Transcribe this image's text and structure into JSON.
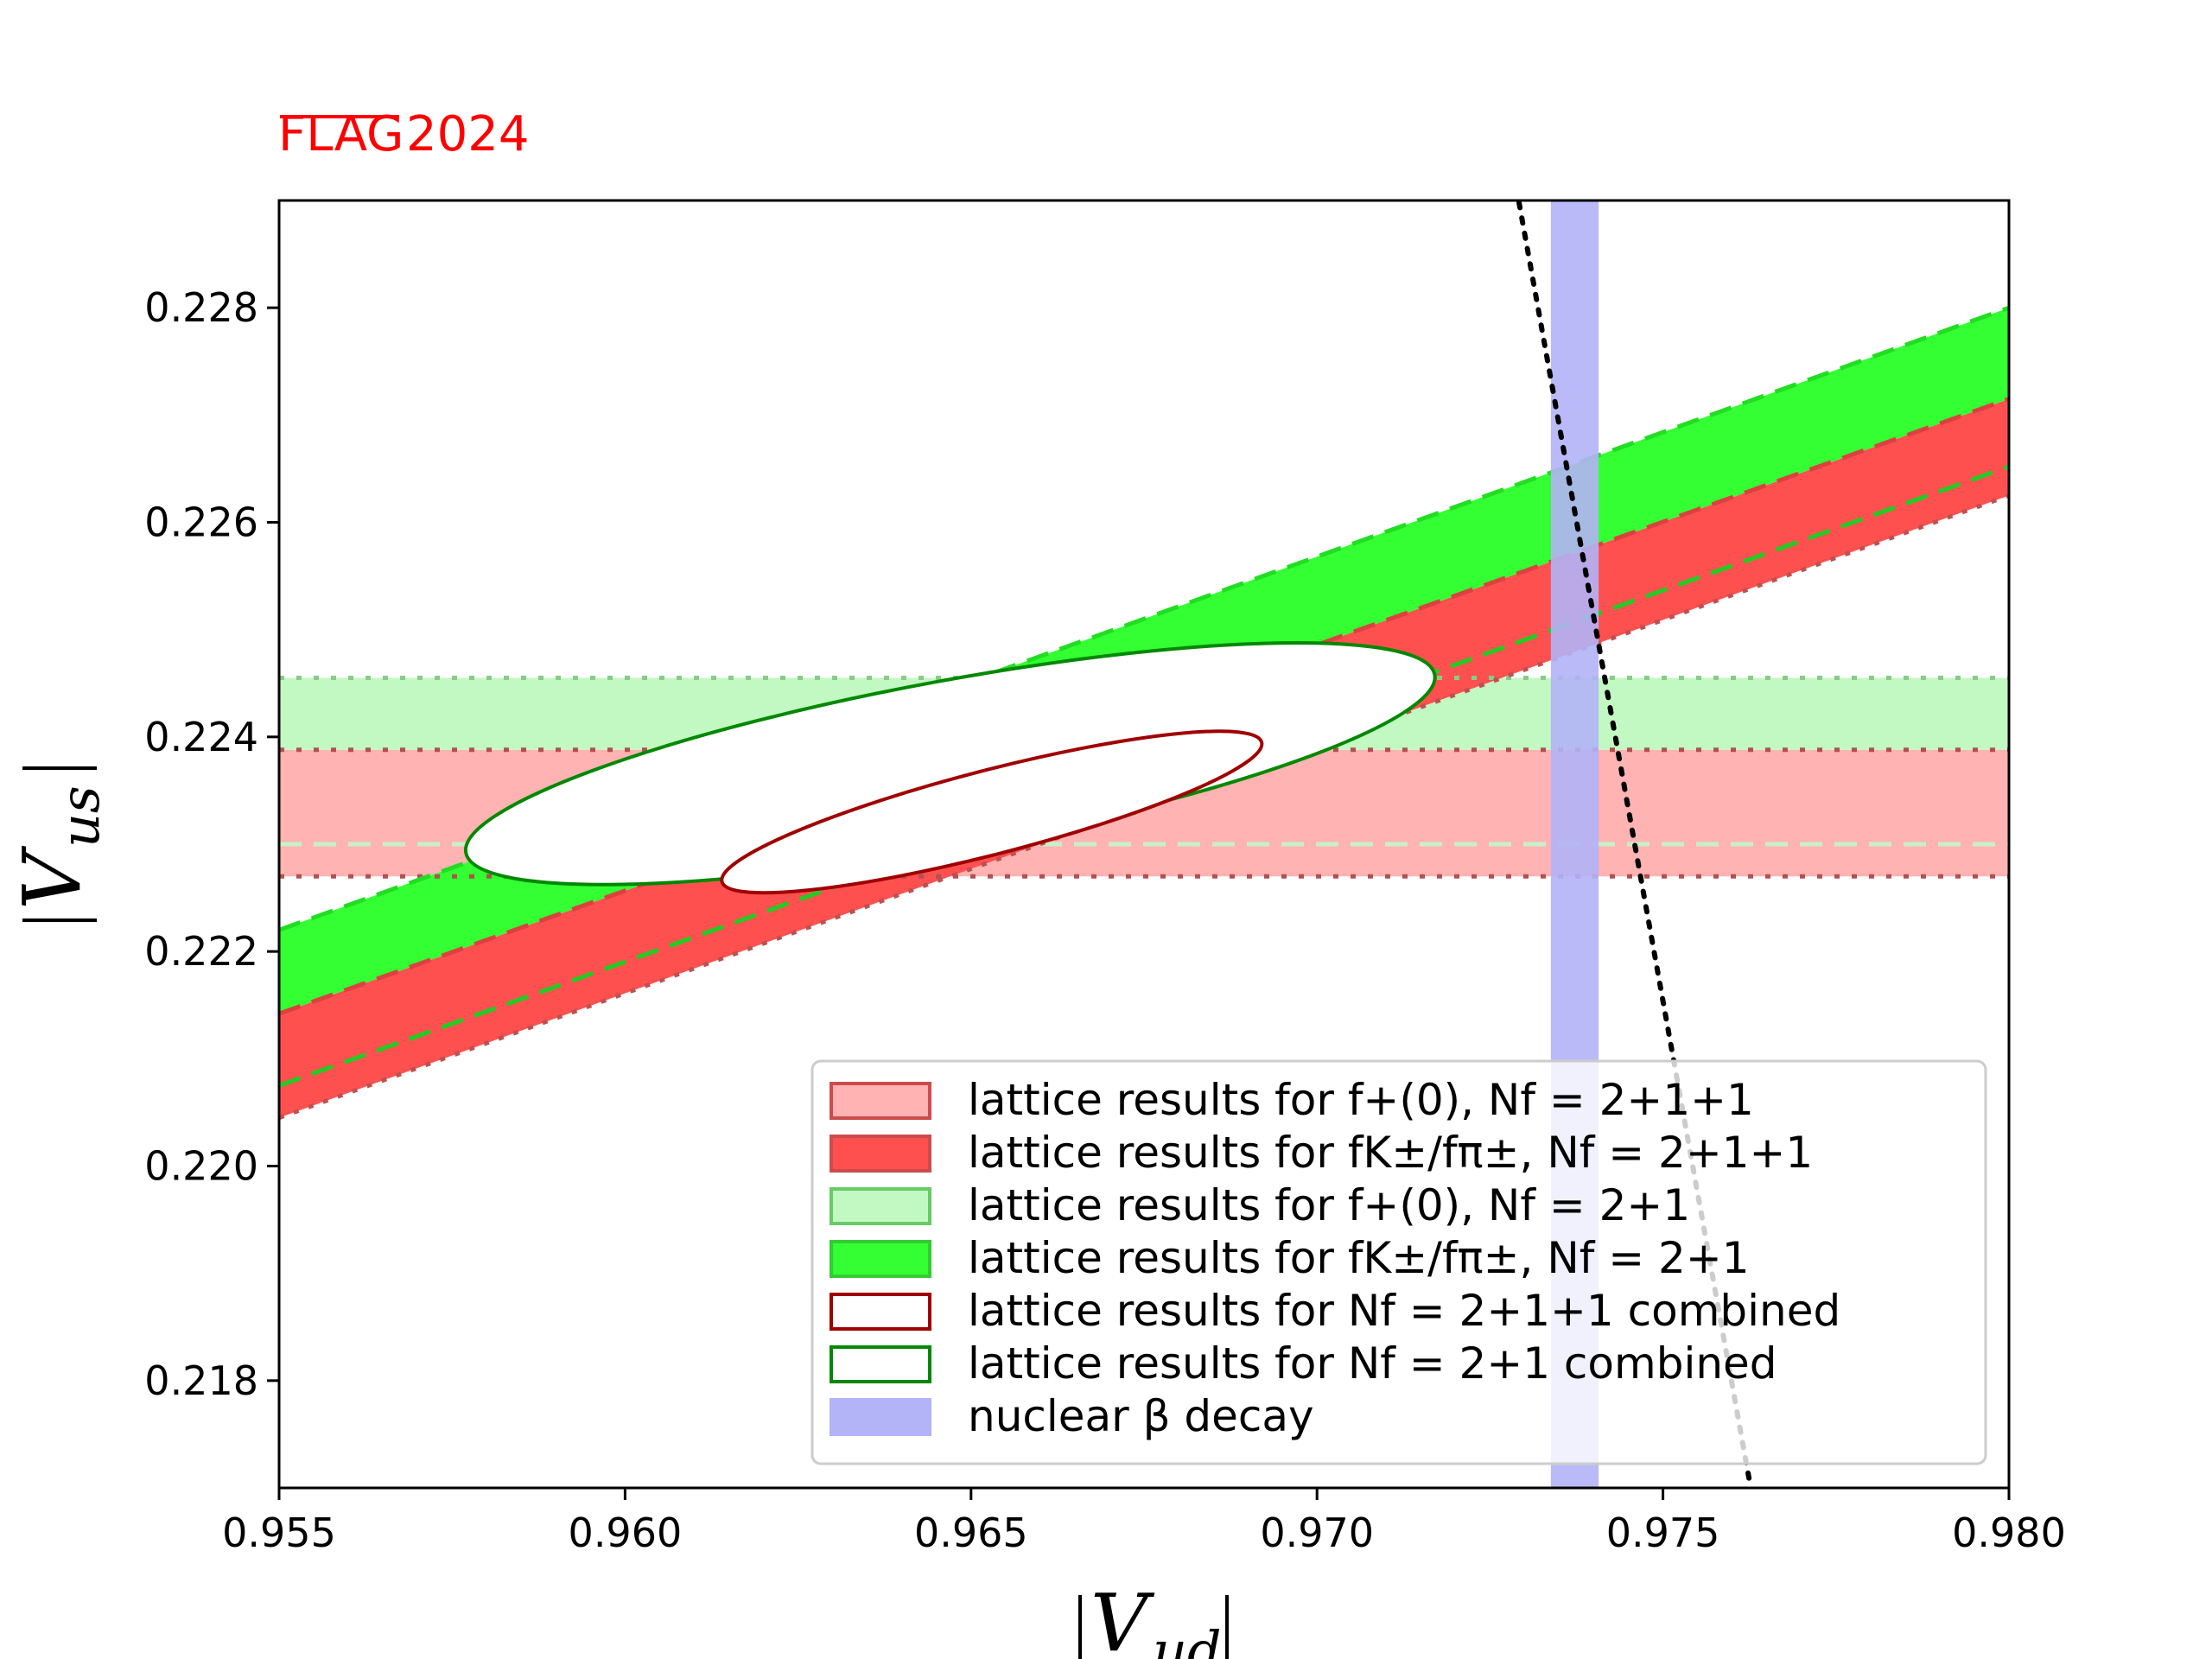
{
  "logo": {
    "text": "FLAG",
    "year": "2024",
    "color": "#ff0000"
  },
  "chart_data": {
    "type": "area",
    "xlabel": "|V_ud|",
    "ylabel": "|V_us|",
    "xlim": [
      0.955,
      0.98
    ],
    "ylim": [
      0.217,
      0.229
    ],
    "xticks": [
      0.955,
      0.96,
      0.965,
      0.97,
      0.975,
      0.98
    ],
    "xtick_labels": [
      "0.955",
      "0.960",
      "0.965",
      "0.970",
      "0.975",
      "0.980"
    ],
    "yticks": [
      0.218,
      0.22,
      0.222,
      0.224,
      0.226,
      0.228
    ],
    "ytick_labels": [
      "0.218",
      "0.220",
      "0.222",
      "0.224",
      "0.226",
      "0.228"
    ],
    "grid": false,
    "legend_position": "lower-right",
    "bands": [
      {
        "name": "f+(0), Nf=2+1+1",
        "kind": "horizontal",
        "y": [
          0.2227,
          0.22388
        ],
        "fill": "#ffb3b3",
        "edge": "#b04040"
      },
      {
        "name": "f+(0), Nf=2+1",
        "kind": "horizontal",
        "y": [
          0.22388,
          0.22455
        ],
        "fill": "#c2f9c2",
        "edge": "#80c880"
      },
      {
        "name": "fK/fpi, Nf=2+1+1",
        "kind": "slanted",
        "lower_at_xlim": [
          0.22045,
          0.22625
        ],
        "upper_at_xlim": [
          0.22142,
          0.22715
        ],
        "fill": "#ff5050",
        "edge": "#d04040"
      },
      {
        "name": "fK/fpi, Nf=2+1",
        "kind": "slanted",
        "lower_at_xlim": [
          0.22142,
          0.22715
        ],
        "upper_at_xlim": [
          0.2222,
          0.228
        ],
        "fill": "#33ff33",
        "edge": "#22cc22"
      },
      {
        "name": "nuclear beta decay",
        "kind": "vertical",
        "x": [
          0.97338,
          0.97407
        ],
        "fill": "#b3b3f7"
      }
    ],
    "ellipses": [
      {
        "name": "Nf=2+1+1 combined",
        "center": [
          0.9653,
          0.2233
        ],
        "major_tip": [
          0.9692,
          0.22395
        ],
        "minor_tip": [
          0.96515,
          0.22368
        ],
        "edge": "#a00000"
      },
      {
        "name": "Nf=2+1 combined",
        "center": [
          0.9647,
          0.22375
        ],
        "major_tip": [
          0.9717,
          0.22458
        ],
        "minor_tip": [
          0.9644,
          0.2245
        ],
        "edge": "#008800"
      }
    ],
    "unitarity_line": {
      "style": "dotted",
      "points": [
        [
          0.97292,
          0.22898
        ],
        [
          0.97626,
          0.21703
        ]
      ],
      "color": "#000000"
    }
  },
  "legend": [
    {
      "label": "lattice results for f+(0), Nf = 2+1+1",
      "fill": "#ffb3b3",
      "edge": "#cc4c4c"
    },
    {
      "label": "lattice results for fK±/fπ±, Nf = 2+1+1",
      "fill": "#ff5050",
      "edge": "#cc4c4c"
    },
    {
      "label": "lattice results for f+(0), Nf = 2+1",
      "fill": "#c2f9c2",
      "edge": "#66cc66"
    },
    {
      "label": "lattice results for fK±/fπ±, Nf = 2+1",
      "fill": "#33ff33",
      "edge": "#33cc33"
    },
    {
      "label": "lattice results for Nf = 2+1+1 combined",
      "fill": "#ffffff",
      "edge": "#a00000"
    },
    {
      "label": "lattice results for Nf = 2+1 combined",
      "fill": "#ffffff",
      "edge": "#008800"
    },
    {
      "label": "nuclear β decay",
      "fill": "#b3b3f7",
      "edge": "#b3b3f7"
    }
  ]
}
